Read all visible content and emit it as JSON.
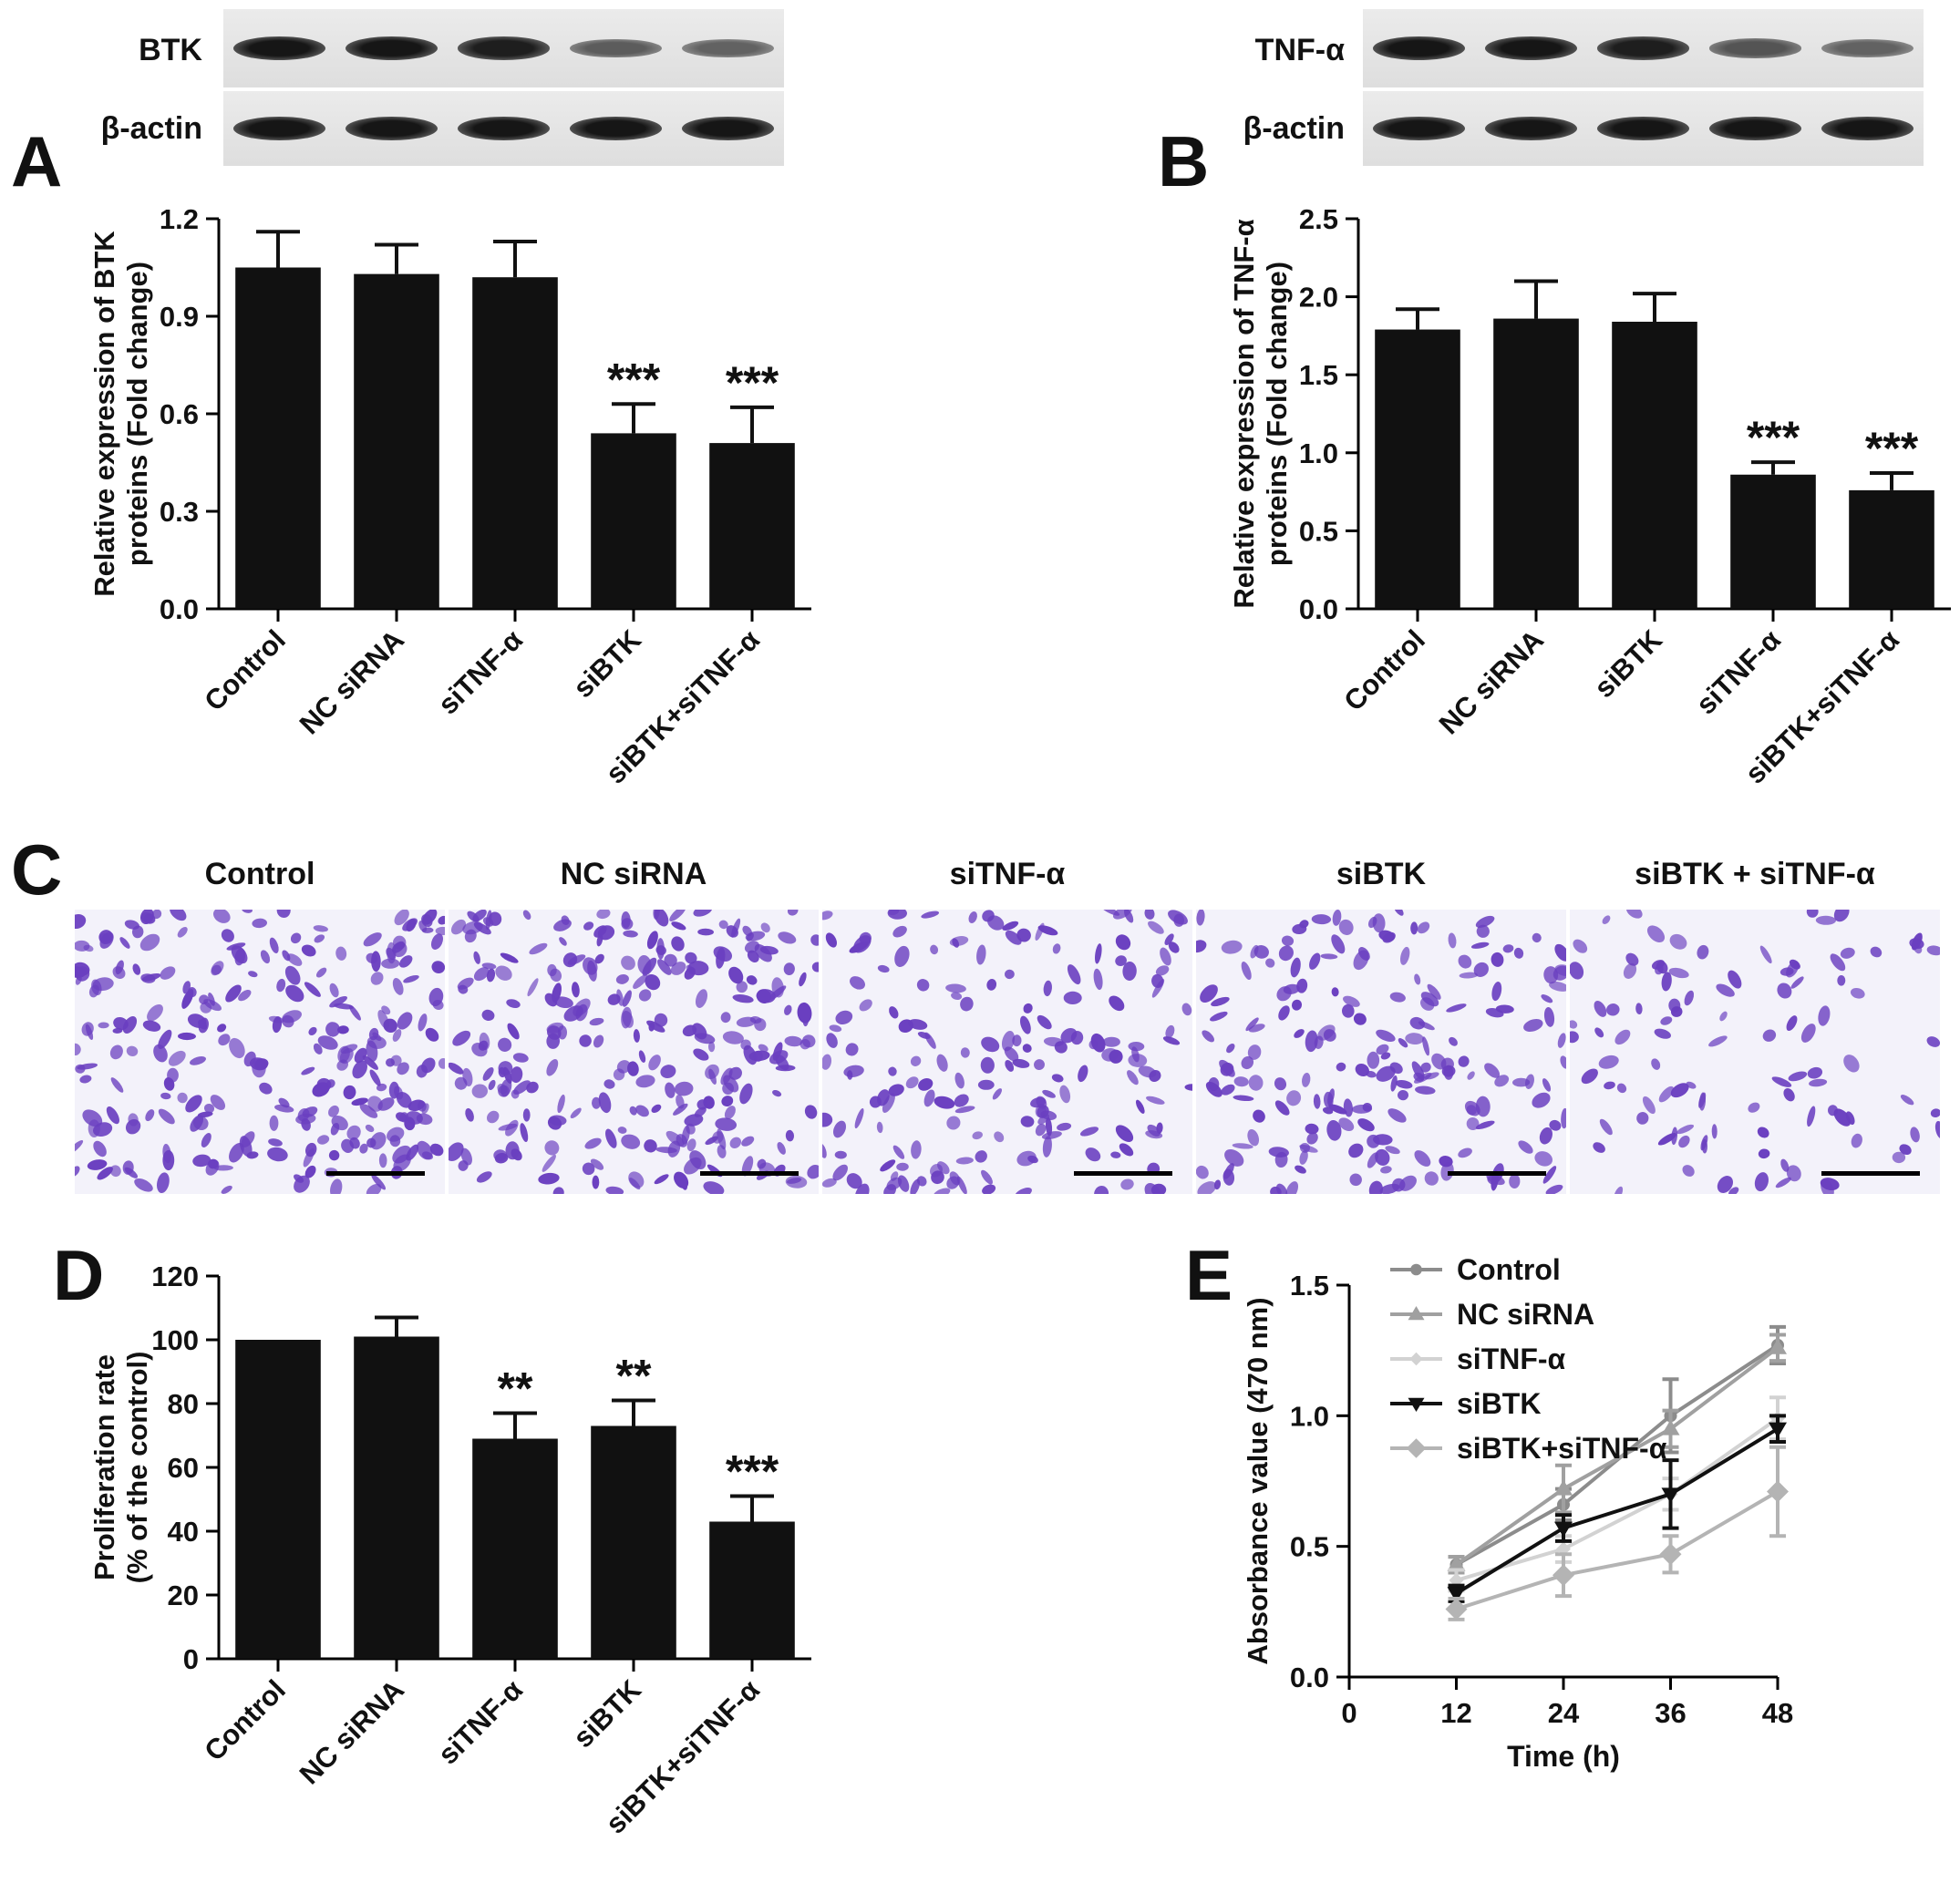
{
  "panels": {
    "A": "A",
    "B": "B",
    "C": "C",
    "D": "D",
    "E": "E"
  },
  "western_blots": {
    "A": {
      "target_label": "BTK",
      "loading_label": "β-actin",
      "target_intensity": [
        1.0,
        1.0,
        0.95,
        0.55,
        0.5
      ],
      "loading_intensity": [
        1,
        1,
        1,
        1,
        1
      ]
    },
    "B": {
      "target_label": "TNF-α",
      "loading_label": "β-actin",
      "target_intensity": [
        1.0,
        1.0,
        0.95,
        0.6,
        0.5
      ],
      "loading_intensity": [
        1,
        1,
        1,
        1,
        1
      ]
    }
  },
  "micrographs": {
    "titles": [
      "Control",
      "NC siRNA",
      "siTNF-α",
      "siBTK",
      "siBTK + siTNF-α"
    ],
    "stain_color": "#6a3fc0",
    "relative_cell_density": [
      1.0,
      1.0,
      0.7,
      0.75,
      0.4
    ]
  },
  "chart_data": [
    {
      "panel": "A",
      "type": "bar",
      "categories": [
        "Control",
        "NC siRNA",
        "siTNF-α",
        "siBTK",
        "siBTK+siTNF-α"
      ],
      "values": [
        1.05,
        1.03,
        1.02,
        0.54,
        0.51
      ],
      "errors": [
        0.11,
        0.09,
        0.11,
        0.09,
        0.11
      ],
      "annotations": [
        "",
        "",
        "",
        "***",
        "***"
      ],
      "ylabel": [
        "Relative expression of BTK",
        "proteins (Fold change)"
      ],
      "ylim": [
        0,
        1.2
      ],
      "yticks": [
        "0.0",
        "0.3",
        "0.6",
        "0.9",
        "1.2"
      ],
      "bar_color": "#111111"
    },
    {
      "panel": "B",
      "type": "bar",
      "categories": [
        "Control",
        "NC siRNA",
        "siBTK",
        "siTNF-α",
        "siBTK+siTNF-α"
      ],
      "values": [
        1.79,
        1.86,
        1.84,
        0.86,
        0.76
      ],
      "errors": [
        0.13,
        0.24,
        0.18,
        0.08,
        0.11
      ],
      "annotations": [
        "",
        "",
        "",
        "***",
        "***"
      ],
      "ylabel": [
        "Relative expression of TNF-α",
        "proteins (Fold change)"
      ],
      "ylim": [
        0,
        2.5
      ],
      "yticks": [
        "0.0",
        "0.5",
        "1.0",
        "1.5",
        "2.0",
        "2.5"
      ],
      "bar_color": "#111111"
    },
    {
      "panel": "D",
      "type": "bar",
      "categories": [
        "Control",
        "NC siRNA",
        "siTNF-α",
        "siBTK",
        "siBTK+siTNF-α"
      ],
      "values": [
        100,
        101,
        69,
        73,
        43
      ],
      "errors": [
        0,
        6,
        8,
        8,
        8
      ],
      "annotations": [
        "",
        "",
        "**",
        "**",
        "***"
      ],
      "ylabel": [
        "Proliferation rate",
        "(% of the control)"
      ],
      "ylim": [
        0,
        120
      ],
      "yticks": [
        "0",
        "20",
        "40",
        "60",
        "80",
        "100",
        "120"
      ],
      "bar_color": "#111111"
    },
    {
      "panel": "E",
      "type": "line",
      "xlabel": "Time (h)",
      "ylabel": "Absorbance value (470 nm)",
      "xlim": [
        0,
        48
      ],
      "xticks": [
        "0",
        "12",
        "24",
        "36",
        "48"
      ],
      "ylim": [
        0,
        1.5
      ],
      "yticks": [
        "0.0",
        "0.5",
        "1.0",
        "1.5"
      ],
      "x": [
        12,
        24,
        36,
        48
      ],
      "legend_position": "top-left",
      "series": [
        {
          "name": "Control",
          "values": [
            0.43,
            0.66,
            1.0,
            1.27
          ],
          "errors": [
            0.03,
            0.06,
            0.14,
            0.07
          ],
          "color": "#8c8c8c",
          "marker": "circle"
        },
        {
          "name": "NC siRNA",
          "values": [
            0.43,
            0.72,
            0.95,
            1.26
          ],
          "errors": [
            0.03,
            0.09,
            0.07,
            0.05
          ],
          "color": "#a0a0a0",
          "marker": "triangle-up"
        },
        {
          "name": "siTNF-α",
          "values": [
            0.37,
            0.49,
            0.7,
            0.99
          ],
          "errors": [
            0.04,
            0.05,
            0.06,
            0.08
          ],
          "color": "#d2d2d2",
          "marker": "diamond-small"
        },
        {
          "name": "siBTK",
          "values": [
            0.32,
            0.57,
            0.7,
            0.95
          ],
          "errors": [
            0.03,
            0.05,
            0.13,
            0.05
          ],
          "color": "#111111",
          "marker": "triangle-down"
        },
        {
          "name": "siBTK+siTNF-α",
          "values": [
            0.26,
            0.39,
            0.47,
            0.71
          ],
          "errors": [
            0.04,
            0.08,
            0.07,
            0.17
          ],
          "color": "#b4b4b4",
          "marker": "diamond"
        }
      ]
    }
  ]
}
